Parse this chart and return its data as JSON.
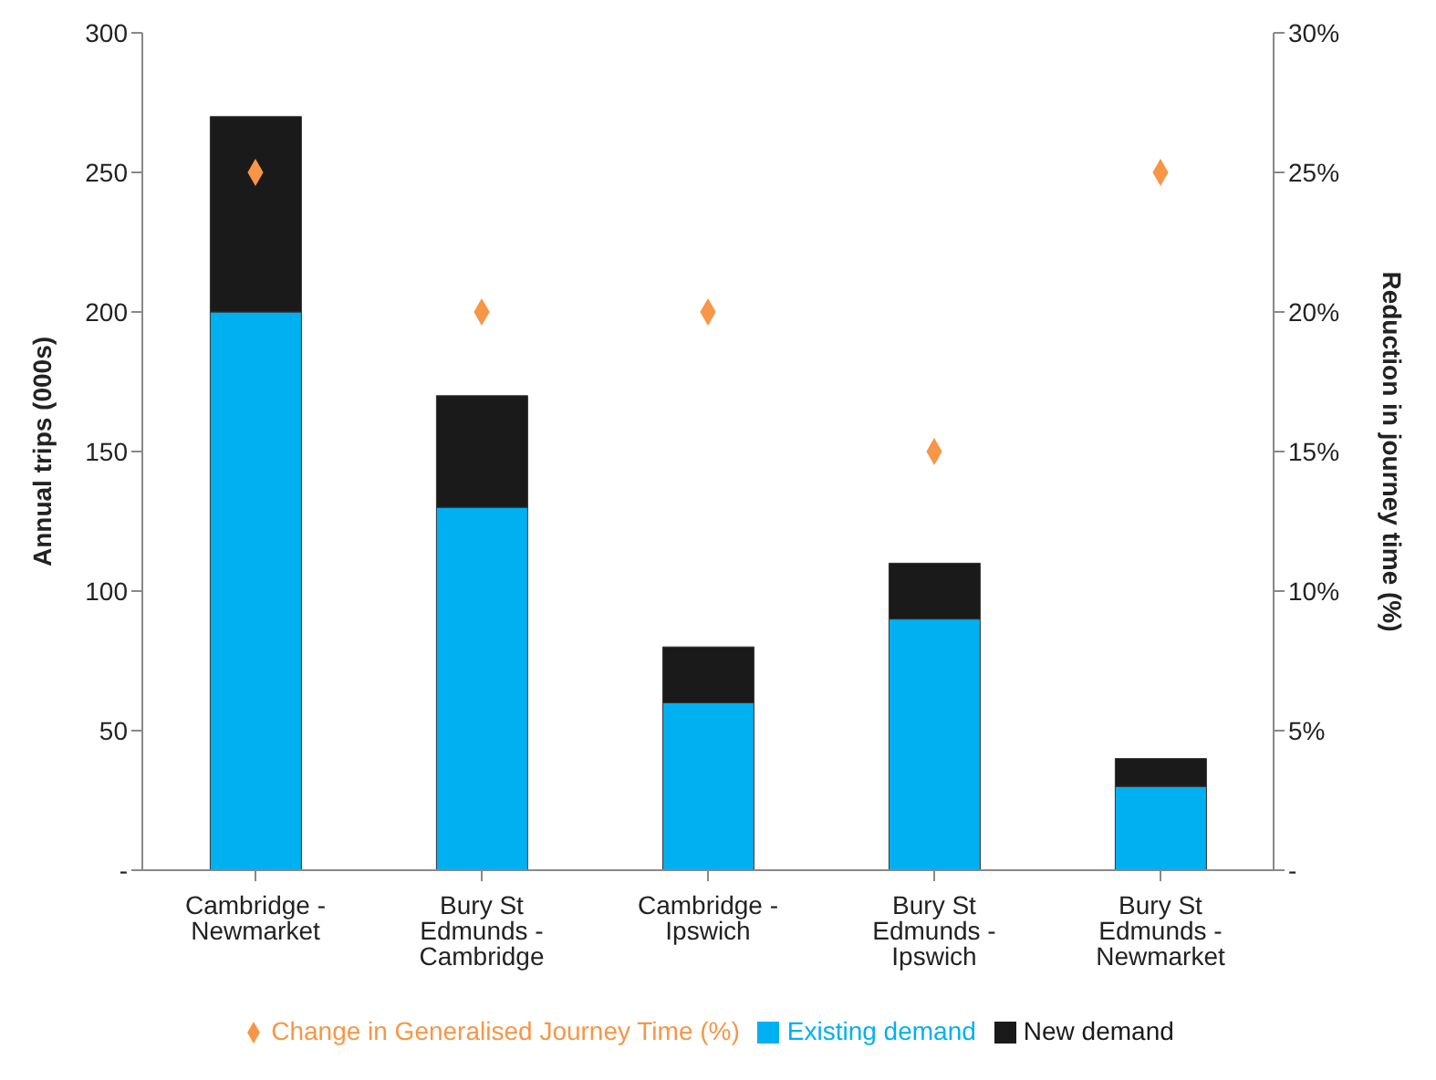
{
  "chart_data": {
    "type": "bar",
    "stacked": true,
    "ylabel": "Annual trips (000s)",
    "y2label": "Reduction in journey time (%)",
    "categories": [
      "Cambridge - Newmarket",
      "Bury St Edmunds - Cambridge",
      "Cambridge - Ipswich",
      "Bury St Edmunds - Ipswich",
      "Bury St Edmunds - Newmarket"
    ],
    "series": [
      {
        "name": "Existing demand",
        "color": "#00b0f0",
        "values": [
          200,
          130,
          60,
          90,
          30
        ]
      },
      {
        "name": "New demand",
        "color": "#1a1a1a",
        "values": [
          70,
          40,
          20,
          20,
          10
        ]
      },
      {
        "name": "Change in Generalised Journey Time (%)",
        "type": "scatter",
        "axis": "y2",
        "marker": "diamond",
        "color": "#f79646",
        "values": [
          25,
          20,
          20,
          15,
          25
        ]
      }
    ],
    "ylim": [
      0,
      300
    ],
    "yticks": [
      {
        "value": 0,
        "label": "-"
      },
      50,
      100,
      150,
      200,
      250,
      300
    ],
    "y2lim": [
      0,
      30
    ],
    "y2ticks": [
      {
        "value": 0,
        "label": "-"
      },
      {
        "value": 5,
        "label": "5%"
      },
      {
        "value": 10,
        "label": "10%"
      },
      {
        "value": 15,
        "label": "15%"
      },
      {
        "value": 20,
        "label": "20%"
      },
      {
        "value": 25,
        "label": "25%"
      },
      {
        "value": 30,
        "label": "30%"
      }
    ],
    "legend": "bottom",
    "grid": false
  }
}
